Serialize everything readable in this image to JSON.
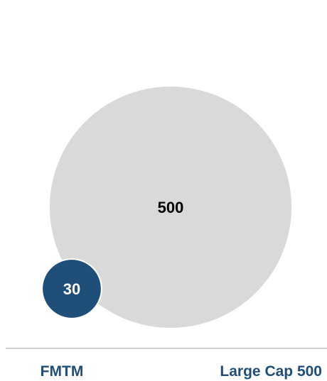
{
  "chart_data": {
    "type": "bubble",
    "title": "",
    "series": [
      {
        "name": "FMTM",
        "value": 30,
        "color": "#1f4e79",
        "label_color": "#ffffff"
      },
      {
        "name": "Large Cap 500",
        "value": 500,
        "color": "#d9d9d9",
        "label_color": "#000000"
      }
    ],
    "axis_line_color": "#bfbfbf",
    "label_color": "#1f4e79"
  }
}
